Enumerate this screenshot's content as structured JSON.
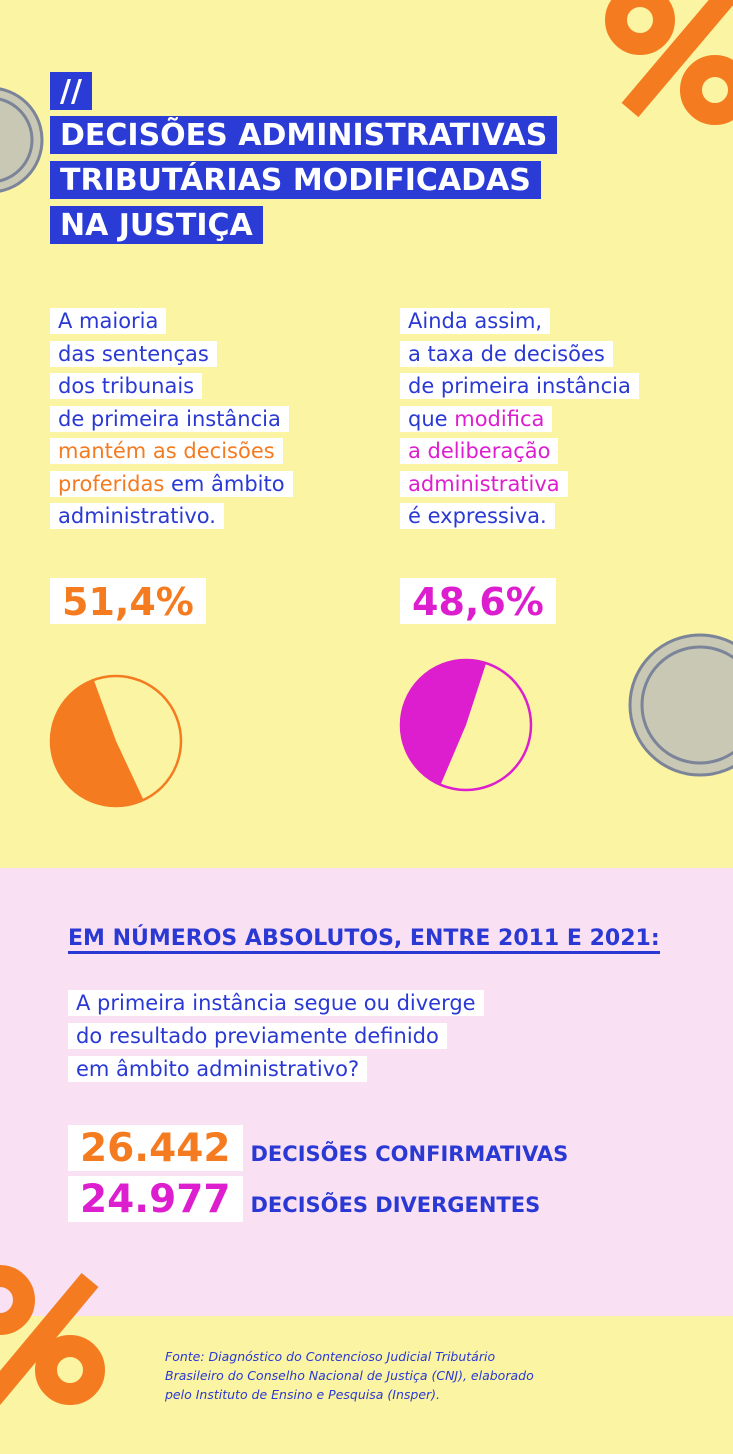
{
  "header": {
    "prefix": "//",
    "title_lines": [
      "DECISÕES ADMINISTRATIVAS",
      "TRIBUTÁRIAS MODIFICADAS",
      "NA JUSTIÇA"
    ]
  },
  "blocks": [
    {
      "lines": [
        [
          {
            "text": "A maioria",
            "accent": false
          }
        ],
        [
          {
            "text": "das sentenças",
            "accent": false
          }
        ],
        [
          {
            "text": "dos tribunais",
            "accent": false
          }
        ],
        [
          {
            "text": "de primeira instância",
            "accent": false
          }
        ],
        [
          {
            "text": "mantém as decisões",
            "accent": true
          }
        ],
        [
          {
            "text": "proferidas",
            "accent": true
          },
          {
            "text": " em âmbito",
            "accent": false
          }
        ],
        [
          {
            "text": "administrativo.",
            "accent": false
          }
        ]
      ],
      "share": 51.4,
      "share_label": "51,4%",
      "color": "#f47b20"
    },
    {
      "lines": [
        [
          {
            "text": "Ainda assim,",
            "accent": false
          }
        ],
        [
          {
            "text": "a taxa de decisões",
            "accent": false
          }
        ],
        [
          {
            "text": "de primeira instância",
            "accent": false
          }
        ],
        [
          {
            "text": "que ",
            "accent": false
          },
          {
            "text": "modifica",
            "accent": true
          }
        ],
        [
          {
            "text": "a deliberação",
            "accent": true
          }
        ],
        [
          {
            "text": "administrativa",
            "accent": true
          }
        ],
        [
          {
            "text": "é expressiva.",
            "accent": false
          }
        ]
      ],
      "share": 48.6,
      "share_label": "48,6%",
      "color": "#dd1ecf"
    }
  ],
  "absolutes": {
    "heading": "EM NÚMEROS ABSOLUTOS, ENTRE 2011 E 2021:",
    "question_lines": [
      "A primeira instância segue ou diverge",
      "do resultado previamente definido",
      "em âmbito administrativo?"
    ],
    "items": [
      {
        "number": "26.442",
        "label": "DECISÕES CONFIRMATIVAS",
        "color": "#f47b20"
      },
      {
        "number": "24.977",
        "label": "DECISÕES DIVERGENTES",
        "color": "#dd1ecf"
      }
    ]
  },
  "footer": {
    "lines": [
      "Fonte: Diagnóstico do Contencioso Judicial Tributário",
      "Brasileiro do Conselho Nacional de Justiça (CNJ), elaborado",
      "pelo Instituto de Ensino e Pesquisa (Insper)."
    ]
  }
}
